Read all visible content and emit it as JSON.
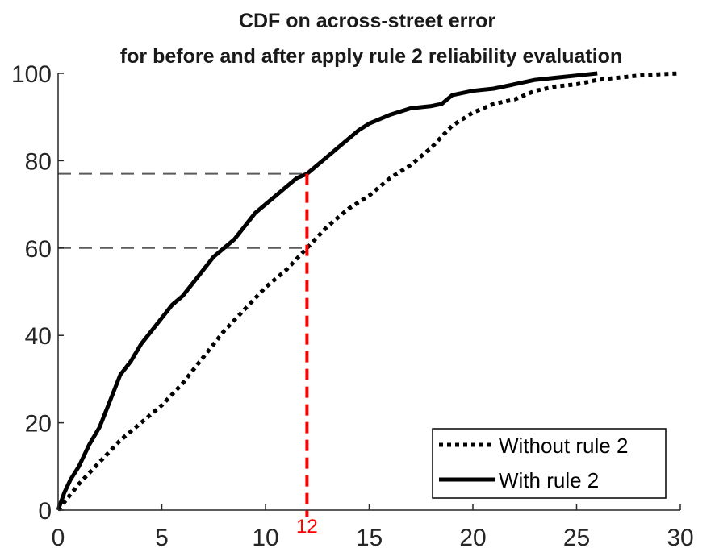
{
  "chart_data": {
    "type": "line",
    "title": "CDF on across-street error",
    "subtitle": "for before and after apply rule 2 reliability evaluation",
    "xlabel": "",
    "ylabel": "",
    "xlim": [
      0,
      30
    ],
    "ylim": [
      0,
      100
    ],
    "x_ticks": [
      0,
      5,
      10,
      15,
      20,
      25,
      30
    ],
    "x_tick_labels": [
      "0",
      "5",
      "10",
      "15",
      "20",
      "25",
      "30"
    ],
    "y_ticks": [
      0,
      20,
      40,
      60,
      80,
      100
    ],
    "y_tick_labels": [
      "0",
      "20",
      "40",
      "60",
      "80",
      "100"
    ],
    "grid": false,
    "legend_position": "bottom-right",
    "series": [
      {
        "name": "Without rule 2",
        "style": "dotted",
        "color": "#000000",
        "x": [
          0,
          0.5,
          1,
          2,
          3,
          4,
          5,
          6,
          7,
          8,
          9,
          10,
          11,
          12,
          13,
          14,
          15,
          16,
          17,
          18,
          19,
          20,
          21,
          22,
          23,
          24,
          25,
          26,
          27,
          28,
          29,
          30
        ],
        "y": [
          0,
          3,
          6,
          11,
          16,
          20,
          24,
          29,
          35,
          41,
          46,
          51,
          55,
          60,
          65,
          69,
          72,
          76,
          79,
          83,
          88,
          91,
          93,
          94,
          96,
          97,
          97.5,
          98.5,
          99,
          99.5,
          99.8,
          100
        ]
      },
      {
        "name": "With rule 2",
        "style": "solid",
        "color": "#000000",
        "x": [
          0,
          0.3,
          0.6,
          1,
          1.5,
          2,
          2.5,
          3,
          3.5,
          4,
          4.5,
          5,
          5.5,
          6,
          6.5,
          7,
          7.5,
          8,
          8.5,
          9,
          9.5,
          10,
          10.5,
          11,
          11.5,
          12,
          12.5,
          13,
          13.5,
          14,
          14.5,
          15,
          16,
          17,
          18,
          18.5,
          19,
          20,
          21,
          22,
          23,
          24,
          25,
          26
        ],
        "y": [
          0,
          4,
          7,
          10,
          15,
          19,
          25,
          31,
          34,
          38,
          41,
          44,
          47,
          49,
          52,
          55,
          58,
          60,
          62,
          65,
          68,
          70,
          72,
          74,
          76,
          77,
          79,
          81,
          83,
          85,
          87,
          88.5,
          90.5,
          92,
          92.5,
          93,
          95,
          96,
          96.5,
          97.5,
          98.5,
          99,
          99.5,
          100
        ]
      }
    ],
    "annotations": {
      "vertical_line_x": 12,
      "vertical_line_label": "12",
      "vertical_line_color": "#ff0000",
      "horizontal_lines_y": [
        77,
        60
      ],
      "horizontal_line_color": "#5a5a5a"
    }
  }
}
